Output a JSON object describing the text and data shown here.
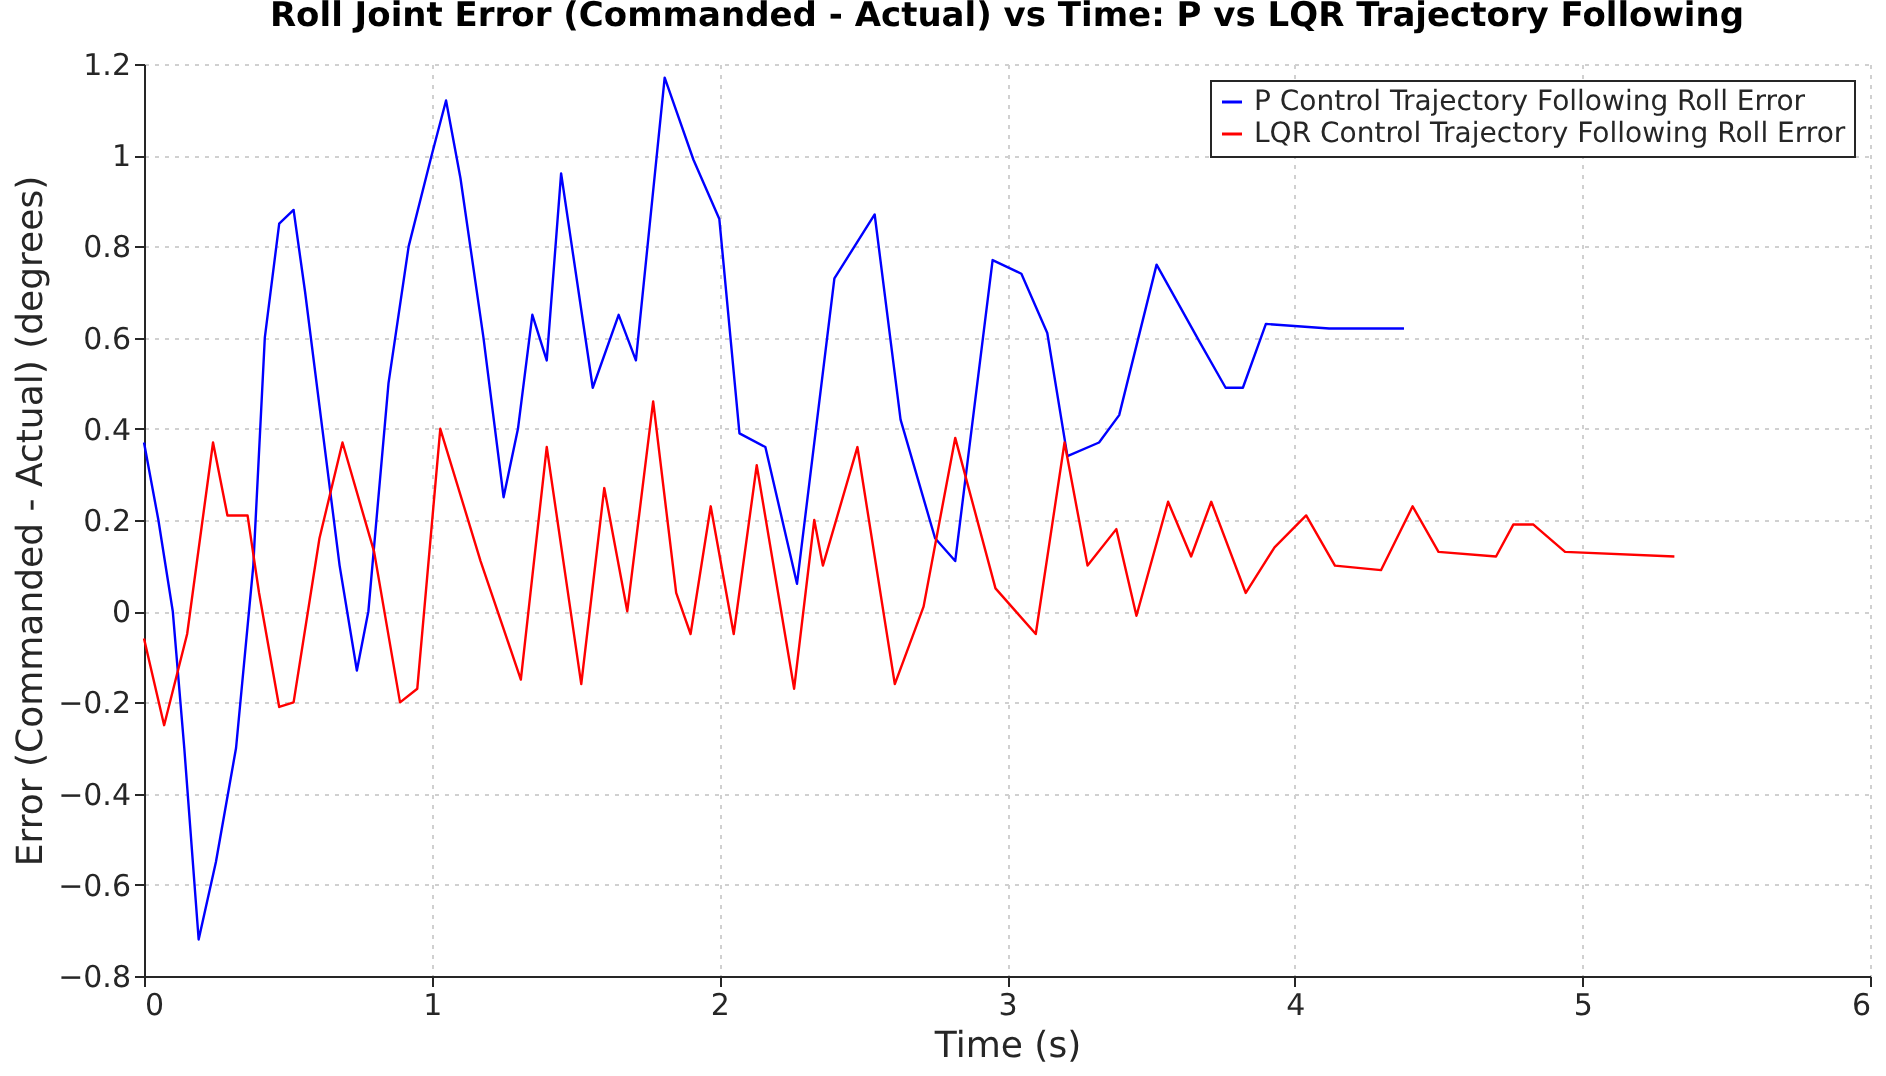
{
  "chart_data": {
    "type": "line",
    "title": "Roll Joint Error (Commanded - Actual) vs Time: P vs LQR Trajectory Following",
    "xlabel": "Time (s)",
    "ylabel": "Error (Commanded - Actual) (degrees)",
    "xlim": [
      0,
      6
    ],
    "xticks": [
      0,
      1,
      2,
      3,
      4,
      5,
      6
    ],
    "ylim": [
      -0.8,
      1.2
    ],
    "yticks": [
      -0.8,
      -0.6,
      -0.4,
      -0.2,
      0,
      0.2,
      0.4,
      0.6,
      0.8,
      1,
      1.2
    ],
    "grid": true,
    "legend": "top right",
    "series": [
      {
        "name": "P Control Trajectory Following Roll Error",
        "color": "#0000ff",
        "x": [
          0,
          0.05,
          0.1,
          0.14,
          0.19,
          0.25,
          0.32,
          0.38,
          0.42,
          0.47,
          0.52,
          0.56,
          0.62,
          0.68,
          0.74,
          0.78,
          0.85,
          0.92,
          1.0,
          1.05,
          1.1,
          1.18,
          1.25,
          1.3,
          1.35,
          1.4,
          1.45,
          1.56,
          1.65,
          1.71,
          1.81,
          1.91,
          2.0,
          2.07,
          2.16,
          2.27,
          2.4,
          2.54,
          2.63,
          2.75,
          2.82,
          2.95,
          3.05,
          3.14,
          3.21,
          3.32,
          3.39,
          3.52,
          3.67,
          3.76,
          3.82,
          3.9,
          4.12,
          4.38
        ],
        "values": [
          0.37,
          0.2,
          0,
          -0.3,
          -0.72,
          -0.55,
          -0.3,
          0.1,
          0.6,
          0.85,
          0.88,
          0.7,
          0.4,
          0.1,
          -0.13,
          0,
          0.5,
          0.8,
          1.0,
          1.12,
          0.95,
          0.6,
          0.25,
          0.4,
          0.65,
          0.55,
          0.96,
          0.49,
          0.65,
          0.55,
          1.17,
          0.99,
          0.86,
          0.39,
          0.36,
          0.06,
          0.73,
          0.87,
          0.42,
          0.16,
          0.11,
          0.77,
          0.74,
          0.61,
          0.34,
          0.37,
          0.43,
          0.76,
          0.59,
          0.49,
          0.49,
          0.63,
          0.62,
          0.62
        ]
      },
      {
        "name": "LQR Control Trajectory Following Roll Error",
        "color": "#ff0000",
        "x": [
          0,
          0.07,
          0.15,
          0.24,
          0.29,
          0.36,
          0.4,
          0.47,
          0.52,
          0.61,
          0.69,
          0.8,
          0.89,
          0.95,
          1.03,
          1.17,
          1.31,
          1.4,
          1.52,
          1.6,
          1.68,
          1.77,
          1.85,
          1.9,
          1.97,
          2.05,
          2.13,
          2.26,
          2.33,
          2.36,
          2.48,
          2.61,
          2.71,
          2.82,
          2.96,
          3.1,
          3.2,
          3.28,
          3.38,
          3.45,
          3.56,
          3.64,
          3.71,
          3.83,
          3.93,
          4.04,
          4.14,
          4.3,
          4.41,
          4.5,
          4.7,
          4.76,
          4.83,
          4.94,
          5.32
        ],
        "values": [
          -0.06,
          -0.25,
          -0.05,
          0.37,
          0.21,
          0.21,
          0.04,
          -0.21,
          -0.2,
          0.16,
          0.37,
          0.13,
          -0.2,
          -0.17,
          0.4,
          0.11,
          -0.15,
          0.36,
          -0.16,
          0.27,
          0,
          0.46,
          0.04,
          -0.05,
          0.23,
          -0.05,
          0.32,
          -0.17,
          0.2,
          0.1,
          0.36,
          -0.16,
          0.01,
          0.38,
          0.05,
          -0.05,
          0.37,
          0.1,
          0.18,
          -0.01,
          0.24,
          0.12,
          0.24,
          0.04,
          0.14,
          0.21,
          0.1,
          0.09,
          0.23,
          0.13,
          0.12,
          0.19,
          0.19,
          0.13,
          0.12
        ]
      }
    ]
  }
}
